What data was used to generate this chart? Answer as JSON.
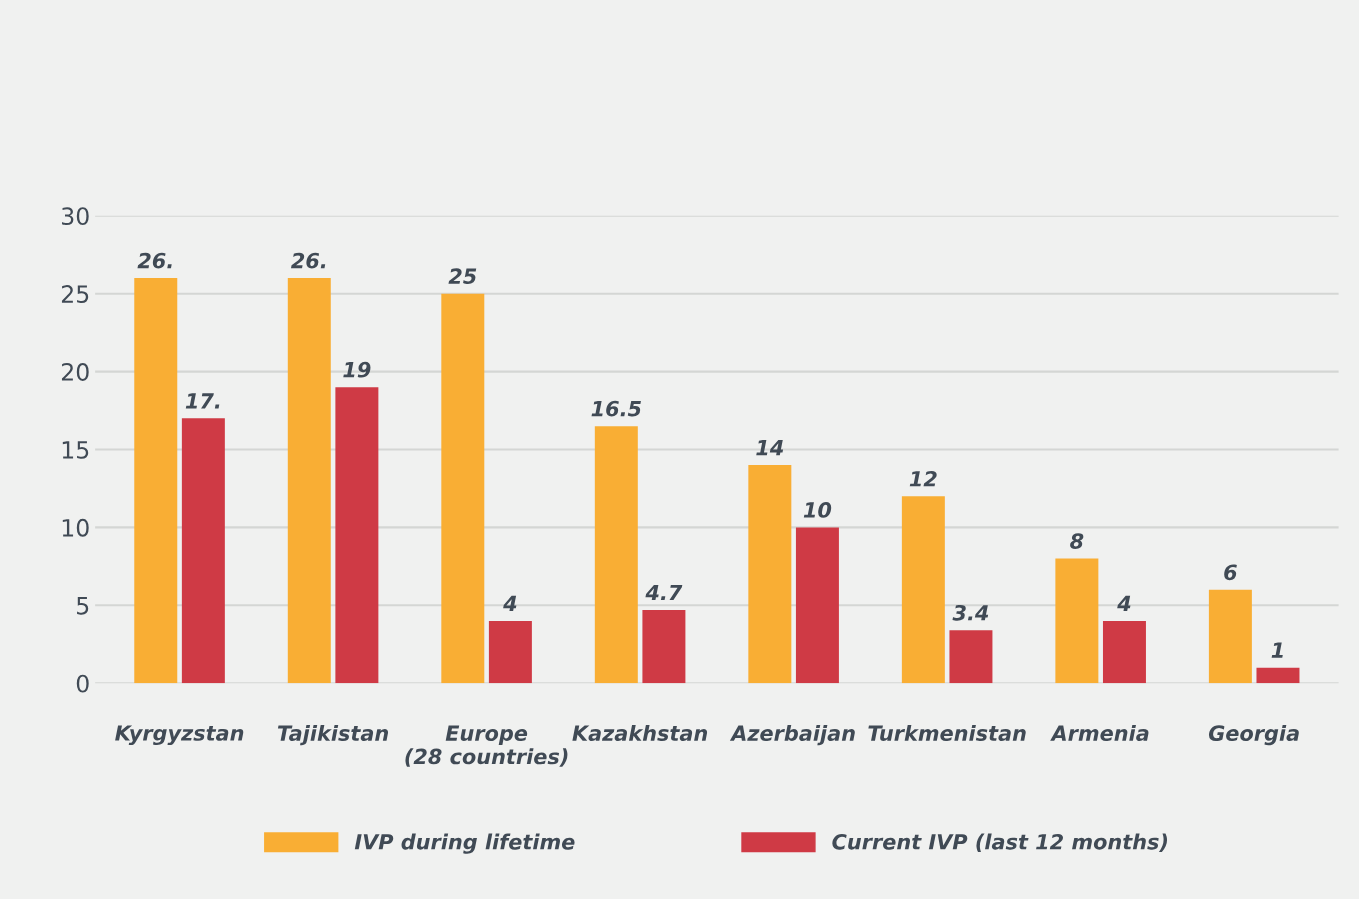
{
  "chart_data": {
    "type": "bar",
    "categories": [
      "Kyrgyzstan",
      "Tajikistan",
      "Europe  (28 countries)",
      "Kazakhstan",
      "Azerbaijan",
      "Turkmenistan",
      "Armenia",
      "Georgia"
    ],
    "series": [
      {
        "name": "IVP during lifetime",
        "color": "#f9ae34",
        "values": [
          26,
          26,
          25,
          16.5,
          14,
          12,
          8,
          6
        ],
        "value_labels": [
          "26.",
          "26.",
          "25",
          "16.5",
          "14",
          "12",
          "8",
          "6"
        ]
      },
      {
        "name": "Current IVP (last 12 months)",
        "color": "#cf3a45",
        "values": [
          17,
          19,
          4,
          4.7,
          10,
          3.4,
          4,
          1
        ],
        "value_labels": [
          "17.",
          "19",
          "4",
          "4.7",
          "10",
          "3.4",
          "4",
          "1"
        ]
      }
    ],
    "ylim": [
      0,
      30
    ],
    "yticks": [
      0,
      5,
      10,
      15,
      20,
      25,
      30
    ],
    "grid": "y",
    "legend": "bottom"
  }
}
